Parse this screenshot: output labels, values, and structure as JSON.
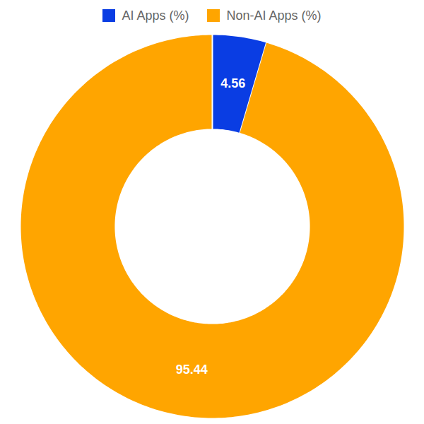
{
  "chart_data": {
    "type": "donut",
    "categories": [
      "AI Apps (%)",
      "Non-AI Apps (%)"
    ],
    "values": [
      4.56,
      95.44
    ],
    "colors": [
      "#0a3de3",
      "#ffa500"
    ],
    "data_labels": true,
    "legend": "top"
  }
}
